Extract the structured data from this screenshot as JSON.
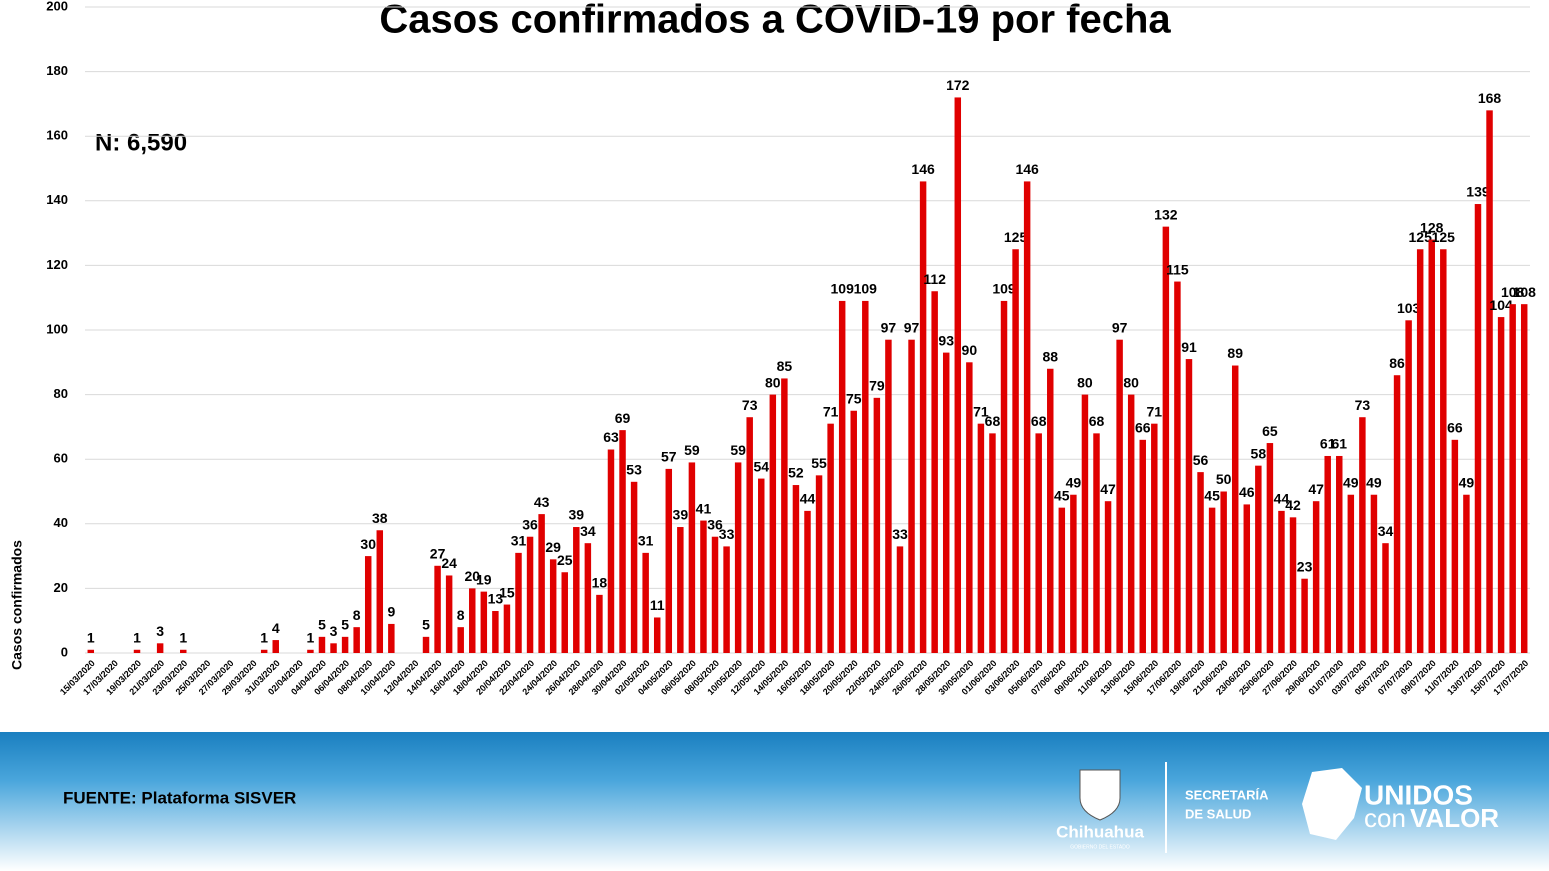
{
  "chart_data": {
    "type": "bar",
    "title": "Casos confirmados a COVID-19 por fecha",
    "annotation": "N: 6,590",
    "y_label": "Casos confirmados",
    "color": "#e00000",
    "ylim": [
      0,
      200
    ],
    "yticks": [
      0,
      20,
      40,
      60,
      80,
      100,
      120,
      140,
      160,
      180,
      200
    ],
    "grid": true,
    "categories": [
      "15/03/2020",
      null,
      "17/03/2020",
      null,
      "19/03/2020",
      null,
      "21/03/2020",
      null,
      "23/03/2020",
      null,
      "25/03/2020",
      null,
      "27/03/2020",
      null,
      "29/03/2020",
      null,
      "31/03/2020",
      null,
      "02/04/2020",
      null,
      "04/04/2020",
      null,
      "06/04/2020",
      null,
      "08/04/2020",
      null,
      "10/04/2020",
      null,
      "12/04/2020",
      null,
      "14/04/2020",
      null,
      "16/04/2020",
      null,
      "18/04/2020",
      null,
      "20/04/2020",
      null,
      "22/04/2020",
      null,
      "24/04/2020",
      null,
      "26/04/2020",
      null,
      "28/04/2020",
      null,
      "30/04/2020",
      null,
      "02/05/2020",
      null,
      "04/05/2020",
      null,
      "06/05/2020",
      null,
      "08/05/2020",
      null,
      "10/05/2020",
      null,
      "12/05/2020",
      null,
      "14/05/2020",
      null,
      "16/05/2020",
      null,
      "18/05/2020",
      null,
      "20/05/2020",
      null,
      "22/05/2020",
      null,
      "24/05/2020",
      null,
      "26/05/2020",
      null,
      "28/05/2020",
      null,
      "30/05/2020",
      null,
      "01/06/2020",
      null,
      "03/06/2020",
      null,
      "05/06/2020",
      null,
      "07/06/2020",
      null,
      "09/06/2020",
      null,
      "11/06/2020",
      null,
      "13/06/2020",
      null,
      "15/06/2020",
      null,
      "17/06/2020",
      null,
      "19/06/2020",
      null,
      "21/06/2020",
      null,
      "23/06/2020",
      null,
      "25/06/2020",
      null,
      "27/06/2020",
      null,
      "29/06/2020",
      null,
      "01/07/2020",
      null,
      "03/07/2020",
      null,
      "05/07/2020",
      null,
      "07/07/2020",
      null,
      "09/07/2020",
      null,
      "11/07/2020",
      null,
      "13/07/2020",
      null,
      "15/07/2020",
      null,
      "17/07/2020"
    ],
    "values": [
      1,
      0,
      0,
      0,
      1,
      0,
      3,
      0,
      1,
      0,
      0,
      0,
      0,
      0,
      0,
      1,
      4,
      0,
      0,
      1,
      5,
      3,
      5,
      8,
      30,
      38,
      9,
      0,
      0,
      5,
      27,
      24,
      8,
      20,
      19,
      13,
      15,
      31,
      36,
      43,
      29,
      25,
      39,
      34,
      18,
      63,
      69,
      53,
      31,
      11,
      57,
      39,
      59,
      41,
      36,
      33,
      59,
      73,
      54,
      80,
      85,
      52,
      44,
      55,
      71,
      109,
      75,
      109,
      79,
      97,
      33,
      97,
      146,
      112,
      93,
      172,
      90,
      71,
      68,
      109,
      125,
      146,
      68,
      88,
      45,
      49,
      80,
      68,
      47,
      97,
      80,
      66,
      71,
      132,
      115,
      91,
      56,
      45,
      50,
      89,
      46,
      58,
      65,
      44,
      42,
      23,
      47,
      61,
      61,
      49,
      73,
      49,
      34,
      86,
      103,
      125,
      128,
      125,
      66,
      49,
      139,
      168,
      104,
      108,
      108
    ],
    "value_labels": [
      "1",
      null,
      null,
      null,
      "1",
      null,
      "3",
      null,
      "1",
      null,
      null,
      null,
      null,
      null,
      null,
      "1",
      "4",
      null,
      null,
      "1",
      "5",
      "3",
      "5",
      "8",
      "30",
      "38",
      "9",
      null,
      null,
      "5",
      "27",
      "24",
      "8",
      "20",
      "19",
      "13",
      "15",
      "31",
      "36",
      "43",
      "29",
      "25",
      "39",
      "34",
      "18",
      "63",
      "69",
      "53",
      "31",
      "11",
      "57",
      "39",
      "59",
      "41",
      "36",
      "33",
      "59",
      "73",
      "54",
      "80",
      "85",
      "52",
      "44",
      "55",
      "71",
      "109",
      "75",
      "109",
      "79",
      "97",
      "33",
      "97",
      "146",
      "112",
      "93",
      "172",
      "90",
      "71",
      "68",
      "109",
      "125",
      "146",
      "68",
      "88",
      "45",
      "49",
      "80",
      "68",
      "47",
      "97",
      "80",
      "66",
      "71",
      "132",
      "115",
      "91",
      "56",
      "45",
      "50",
      "89",
      "46",
      "58",
      "65",
      "44",
      "42",
      "23",
      "47",
      "61",
      "61",
      "49",
      "73",
      "49",
      "34",
      "86",
      "103",
      "125",
      "128",
      "125",
      "66",
      "49",
      "139",
      "168",
      "104",
      "108",
      "108"
    ]
  },
  "footer": {
    "source": "FUENTE: Plataforma SISVER",
    "org": "Chihuahua",
    "org_sub": "GOBIERNO DEL ESTADO",
    "dept_1": "SECRETARÍA",
    "dept_2": "DE SALUD",
    "slogan_1": "UNIDOS",
    "slogan_2": "con",
    "slogan_3": "VALOR"
  }
}
